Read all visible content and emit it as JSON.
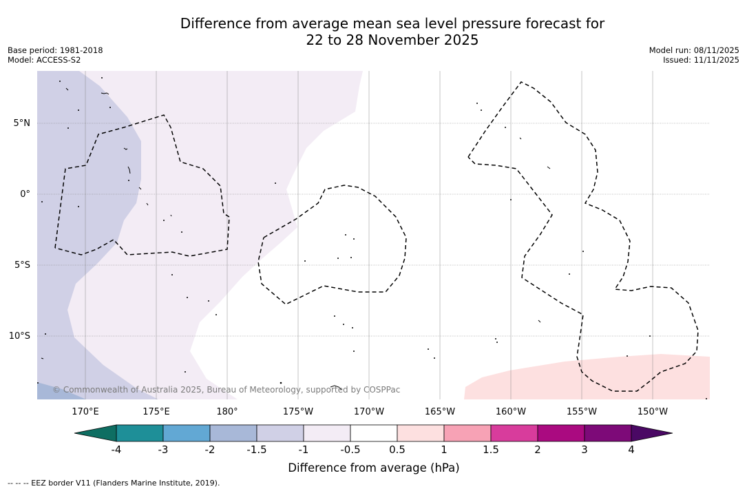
{
  "title": {
    "line1": "Difference from average mean sea level pressure forecast for",
    "line2": "22 to 28 November 2025"
  },
  "meta": {
    "base_period": "Base period: 1981-2018",
    "model": "Model: ACCESS-S2",
    "model_run": "Model run: 08/11/2025",
    "issued": "Issued: 11/11/2025"
  },
  "map": {
    "lat_labels": [
      "5°N",
      "0°",
      "5°S",
      "10°S"
    ],
    "lon_labels": [
      "170°E",
      "175°E",
      "180°",
      "175°W",
      "170°W",
      "165°W",
      "160°W",
      "155°W",
      "150°W"
    ],
    "copyright": "© Commonwealth of Australia 2025, Bureau of Meteorology, supported by COSPPac",
    "regions": [
      {
        "name": "slightly-below-average-west",
        "category": "-1.5 to -1"
      },
      {
        "name": "slightly-below-average-central",
        "category": "-1 to -0.5"
      },
      {
        "name": "slightly-above-average-southeast",
        "category": "0.5 to 1"
      }
    ],
    "eez_label": "EEZ border"
  },
  "colorbar": {
    "ticks": [
      "-4",
      "-3",
      "-2",
      "-1.5",
      "-1",
      "-0.5",
      "0.5",
      "1",
      "1.5",
      "2",
      "3",
      "4"
    ],
    "colors": [
      "#1e8f98",
      "#62a8d4",
      "#a8b8d8",
      "#d0d0e6",
      "#f3ecf5",
      "#ffffff",
      "#fde0e0",
      "#f7a2b5",
      "#d83c9c",
      "#aa0a80",
      "#7d0a78"
    ],
    "under_color": "#0e6e62",
    "over_color": "#4a0864",
    "label": "Difference from average (hPa)"
  },
  "footer": {
    "text": "--  --  -- EEZ border V11 (Flanders Marine Institute, 2019)."
  }
}
